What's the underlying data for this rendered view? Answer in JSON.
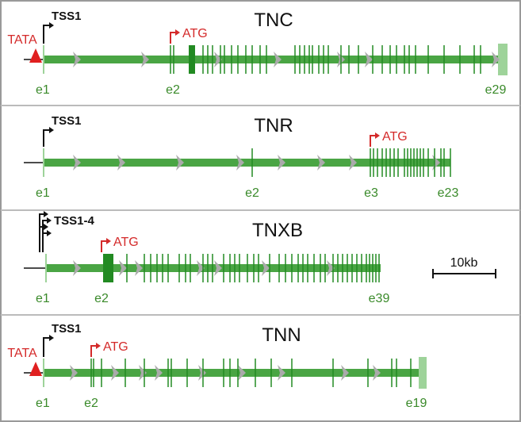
{
  "genes": [
    {
      "name": "TNC",
      "tss": "TSS1",
      "tata": "TATA",
      "atg": "ATG",
      "exons": [
        "e1",
        "e2",
        "e29"
      ]
    },
    {
      "name": "TNR",
      "tss": "TSS1",
      "atg": "ATG",
      "exons": [
        "e1",
        "e2",
        "e3",
        "e23"
      ]
    },
    {
      "name": "TNXB",
      "tss": "TSS1-4",
      "atg": "ATG",
      "exons": [
        "e1",
        "e2",
        "e39"
      ]
    },
    {
      "name": "TNN",
      "tss": "TSS1",
      "tata": "TATA",
      "atg": "ATG",
      "exons": [
        "e1",
        "e2",
        "e19"
      ]
    }
  ],
  "scale": "10kb"
}
